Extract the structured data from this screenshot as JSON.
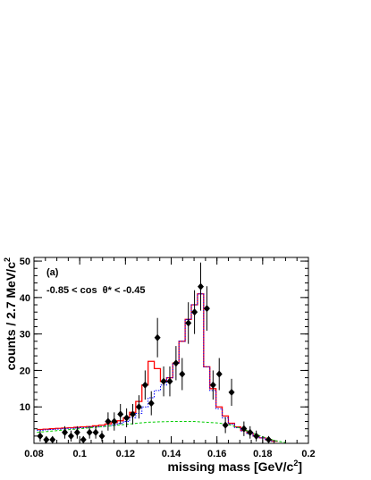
{
  "chart_data": {
    "type": "scatter",
    "xlabel": "missing mass [GeV/c",
    "xlabel_sup": "2",
    "xlabel_end": "]",
    "ylabel": "counts / 2.7 MeV/c",
    "ylabel_sup": "2",
    "panel_label": "(a)",
    "cut_label": "-0.85 < cos  θ* < -0.45",
    "xlim": [
      0.08,
      0.2
    ],
    "ylim": [
      0,
      51
    ],
    "x_ticks": [
      "0.08",
      "0.1",
      "0.12",
      "0.14",
      "0.16",
      "0.18",
      "0.2"
    ],
    "y_ticks": [
      "10",
      "20",
      "30",
      "40",
      "50"
    ],
    "bin_edges": [
      0.0813,
      0.084,
      0.0867,
      0.0894,
      0.0921,
      0.0948,
      0.0975,
      0.1002,
      0.1029,
      0.1056,
      0.1083,
      0.111,
      0.1137,
      0.1164,
      0.1191,
      0.1218,
      0.1245,
      0.1272,
      0.1299,
      0.1326,
      0.1353,
      0.138,
      0.1407,
      0.1434,
      0.1461,
      0.1488,
      0.1515,
      0.1542,
      0.1569,
      0.1596,
      0.1623,
      0.165,
      0.1677,
      0.1704,
      0.1731,
      0.1758,
      0.1785,
      0.1812,
      0.1839,
      0.1866
    ],
    "series": [
      {
        "kind": "data",
        "color": "#000000",
        "x": [
          0.0827,
          0.0854,
          0.0881,
          0.0935,
          0.0962,
          0.0989,
          0.1016,
          0.1043,
          0.107,
          0.1097,
          0.1124,
          0.1151,
          0.1178,
          0.1205,
          0.1232,
          0.1259,
          0.1286,
          0.1313,
          0.134,
          0.1367,
          0.1394,
          0.1421,
          0.1448,
          0.1475,
          0.1502,
          0.1529,
          0.1556,
          0.1583,
          0.161,
          0.1637,
          0.1664,
          0.1718,
          0.1745,
          0.1772,
          0.1826
        ],
        "y": [
          2,
          1,
          1,
          3,
          2,
          3,
          1,
          3,
          3,
          2,
          6,
          6,
          8,
          7,
          8,
          10,
          16,
          11,
          29,
          17,
          17,
          22,
          19,
          33,
          36,
          43,
          37,
          16,
          19,
          5,
          14,
          4,
          3,
          2,
          1
        ],
        "err": [
          1.5,
          1,
          1,
          1.7,
          1.5,
          1.7,
          1,
          1.7,
          1.7,
          1.5,
          2.5,
          2.5,
          2.8,
          2.6,
          2.8,
          3.2,
          4,
          3.3,
          5.4,
          4.1,
          4.1,
          4.7,
          4.4,
          5.7,
          6,
          6.6,
          6.1,
          4,
          4.4,
          2.2,
          3.7,
          2,
          1.7,
          1.5,
          1
        ]
      },
      {
        "kind": "fit_total",
        "color": "#ff0000",
        "values": [
          3.8,
          3.9,
          4,
          4.1,
          4.2,
          4.3,
          4.4,
          4.5,
          4.6,
          4.8,
          5,
          5.3,
          5.7,
          6.2,
          7,
          8.5,
          11.5,
          16,
          22.5,
          20.5,
          17,
          18,
          22,
          28,
          34,
          38,
          41,
          21,
          15,
          10,
          7.5,
          5.5,
          4.5,
          3.5,
          2.8,
          2,
          1.5,
          1,
          0.6
        ]
      },
      {
        "kind": "signal",
        "color": "#0000ff",
        "values": [
          3.6,
          3.7,
          3.8,
          3.9,
          4,
          4.1,
          4.2,
          4.3,
          4.4,
          4.5,
          4.6,
          4.8,
          5.1,
          5.5,
          6,
          7,
          8.2,
          10,
          12.5,
          14.5,
          16,
          18,
          22,
          28,
          34,
          38,
          41,
          21,
          14.5,
          9.5,
          7,
          5.3,
          4.3,
          3.4,
          2.7,
          2,
          1.5,
          1,
          0.6
        ]
      },
      {
        "kind": "background",
        "color": "#00cc00",
        "x": [
          0.0813,
          0.09,
          0.1,
          0.11,
          0.12,
          0.13,
          0.14,
          0.15,
          0.16,
          0.165,
          0.17,
          0.175,
          0.18,
          0.185,
          0.19
        ],
        "y": [
          3,
          3.5,
          4,
          4.6,
          5.2,
          5.8,
          6,
          6,
          5.6,
          5.2,
          4.2,
          3,
          1.8,
          0.8,
          0.2
        ]
      }
    ]
  }
}
